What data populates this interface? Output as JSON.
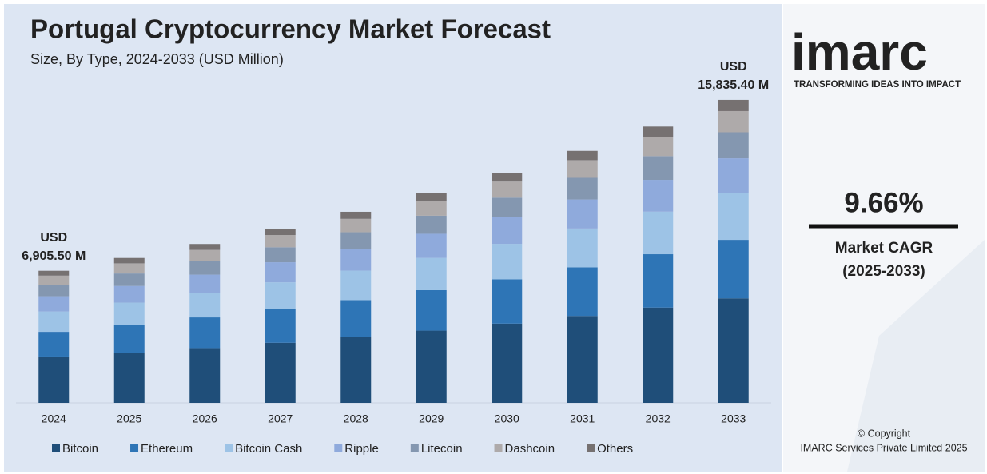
{
  "chart_data": {
    "type": "bar",
    "stacked": true,
    "title": "Portugal Cryptocurrency Market Forecast",
    "subtitle": "Size, By Type, 2024-2033 (USD Million)",
    "categories": [
      "2024",
      "2025",
      "2026",
      "2027",
      "2028",
      "2029",
      "2030",
      "2031",
      "2032",
      "2033"
    ],
    "series": [
      {
        "name": "Bitcoin",
        "color": "#1f4e79",
        "values": [
          2382.4,
          2612.7,
          2864.9,
          3141.9,
          3445.2,
          3778.1,
          4143.1,
          4543.3,
          4982.1,
          5463.2
        ]
      },
      {
        "name": "Ethereum",
        "color": "#2e75b6",
        "values": [
          1332.8,
          1461.6,
          1602.7,
          1757.7,
          1927.3,
          2113.5,
          2317.7,
          2541.6,
          2787.1,
          3056.2
        ]
      },
      {
        "name": "Bitcoin Cash",
        "color": "#9dc3e6",
        "values": [
          1063.4,
          1166.2,
          1278.8,
          1402.5,
          1537.8,
          1686.5,
          1849.4,
          2028.0,
          2223.9,
          2438.7
        ]
      },
      {
        "name": "Ripple",
        "color": "#8faadc",
        "values": [
          794.1,
          870.9,
          955.0,
          1047.3,
          1148.4,
          1259.4,
          1381.0,
          1514.4,
          1660.7,
          1821.1
        ]
      },
      {
        "name": "Litecoin",
        "color": "#8497b0",
        "values": [
          593.9,
          651.3,
          714.1,
          783.2,
          858.8,
          941.8,
          1032.8,
          1132.5,
          1241.9,
          1361.8
        ]
      },
      {
        "name": "Dashcoin",
        "color": "#aeaaaa",
        "values": [
          483.4,
          530.1,
          581.3,
          637.5,
          699.0,
          766.6,
          840.6,
          921.8,
          1010.9,
          1108.5
        ]
      },
      {
        "name": "Others",
        "color": "#767171",
        "values": [
          255.5,
          280.2,
          307.2,
          337.0,
          369.5,
          405.2,
          444.3,
          487.3,
          534.3,
          585.9
        ]
      }
    ],
    "total_labels": [
      [
        "USD",
        "6,905.50 M"
      ],
      null,
      null,
      null,
      null,
      null,
      null,
      null,
      null,
      [
        "USD",
        "15,835.40 M"
      ]
    ],
    "ylim": [
      0,
      16000
    ]
  },
  "sidebar": {
    "logo": "imarc",
    "tagline": "TRANSFORMING IDEAS INTO IMPACT",
    "cagr_value": "9.66%",
    "cagr_label": "Market CAGR",
    "cagr_period": "(2025-2033)",
    "copyright": "© Copyright",
    "copyright_holder": "IMARC Services Private Limited 2025"
  }
}
